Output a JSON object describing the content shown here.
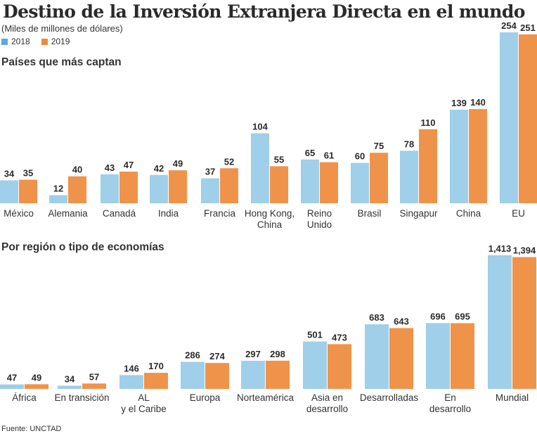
{
  "title": "Destino de la Inversión Extranjera Directa en el mundo",
  "subtitle": "(Miles de millones de dólares)",
  "legend": [
    {
      "label": "2018",
      "color": "#9fcfe9"
    },
    {
      "label": "2019",
      "color": "#f0934a"
    }
  ],
  "source": "Fuente: UNCTAD",
  "chart_data": [
    {
      "type": "bar",
      "title": "Países que más captan",
      "xlabel": "",
      "ylabel": "Miles de millones de dólares",
      "ylim": [
        0,
        254
      ],
      "grid": false,
      "legend_position": "top-left",
      "categories": [
        [
          "México"
        ],
        [
          "Alemania"
        ],
        [
          "Canadá"
        ],
        [
          "India"
        ],
        [
          "Francia"
        ],
        [
          "Hong Kong,",
          "China"
        ],
        [
          "Reino",
          "Unido"
        ],
        [
          "Brasil"
        ],
        [
          "Singapur"
        ],
        [
          "China"
        ],
        [
          "EU"
        ]
      ],
      "series": [
        {
          "name": "2018",
          "color": "#9fcfe9",
          "values": [
            34,
            12,
            43,
            42,
            37,
            104,
            65,
            60,
            78,
            139,
            254
          ],
          "labels": [
            "34",
            "12",
            "43",
            "42",
            "37",
            "104",
            "65",
            "60",
            "78",
            "139",
            "254"
          ]
        },
        {
          "name": "2019",
          "color": "#f0934a",
          "values": [
            35,
            40,
            47,
            49,
            52,
            55,
            61,
            75,
            110,
            140,
            251
          ],
          "labels": [
            "35",
            "40",
            "47",
            "49",
            "52",
            "55",
            "61",
            "75",
            "110",
            "140",
            "251"
          ]
        }
      ]
    },
    {
      "type": "bar",
      "title": "Por región o tipo de economías",
      "xlabel": "",
      "ylabel": "Miles de millones de dólares",
      "ylim": [
        0,
        1413
      ],
      "grid": false,
      "categories": [
        [
          "África"
        ],
        [
          "En transición"
        ],
        [
          "AL",
          "y el Caribe"
        ],
        [
          "Europa"
        ],
        [
          "Norteamérica"
        ],
        [
          "Asia en",
          "desarrollo"
        ],
        [
          "Desarrolladas"
        ],
        [
          "En",
          "desarrollo"
        ],
        [
          "Mundial"
        ]
      ],
      "series": [
        {
          "name": "2018",
          "color": "#9fcfe9",
          "values": [
            47,
            34,
            146,
            286,
            297,
            501,
            683,
            696,
            1413
          ],
          "labels": [
            "47",
            "34",
            "146",
            "286",
            "297",
            "501",
            "683",
            "696",
            "1,413"
          ]
        },
        {
          "name": "2019",
          "color": "#f0934a",
          "values": [
            49,
            57,
            170,
            274,
            298,
            473,
            643,
            695,
            1394
          ],
          "labels": [
            "49",
            "57",
            "170",
            "274",
            "298",
            "473",
            "643",
            "695",
            "1,394"
          ]
        }
      ]
    }
  ]
}
